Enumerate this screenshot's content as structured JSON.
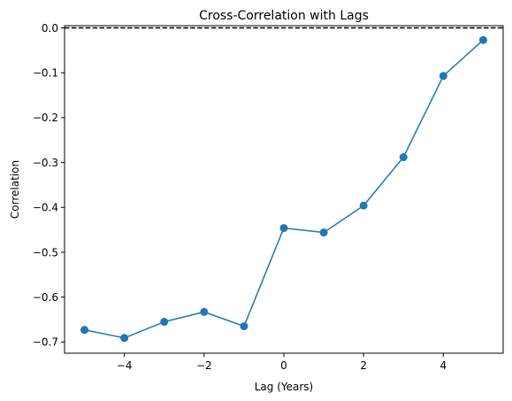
{
  "chart_data": {
    "type": "line",
    "title": "Cross-Correlation with Lags",
    "xlabel": "Lag (Years)",
    "ylabel": "Correlation",
    "xlim": [
      -5.5,
      5.5
    ],
    "ylim": [
      -0.725,
      0.005
    ],
    "x_ticks": [
      -4,
      -2,
      0,
      2,
      4
    ],
    "y_ticks": [
      0.0,
      -0.1,
      -0.2,
      -0.3,
      -0.4,
      -0.5,
      -0.6,
      -0.7
    ],
    "x_tick_labels": [
      "−4",
      "−2",
      "0",
      "2",
      "4"
    ],
    "y_tick_labels": [
      "0.0",
      "−0.1",
      "−0.2",
      "−0.3",
      "−0.4",
      "−0.5",
      "−0.6",
      "−0.7"
    ],
    "grid": false,
    "series": [
      {
        "color": "#1f77b4",
        "marker": "circle",
        "x": [
          -5,
          -4,
          -3,
          -2,
          -1,
          0,
          1,
          2,
          3,
          4,
          5
        ],
        "y": [
          -0.673,
          -0.691,
          -0.655,
          -0.633,
          -0.665,
          -0.446,
          -0.456,
          -0.396,
          -0.288,
          -0.107,
          -0.027
        ]
      }
    ],
    "reference_lines": [
      {
        "orientation": "horizontal",
        "y": 0.0,
        "style": "dashed",
        "color": "#000000"
      }
    ]
  }
}
